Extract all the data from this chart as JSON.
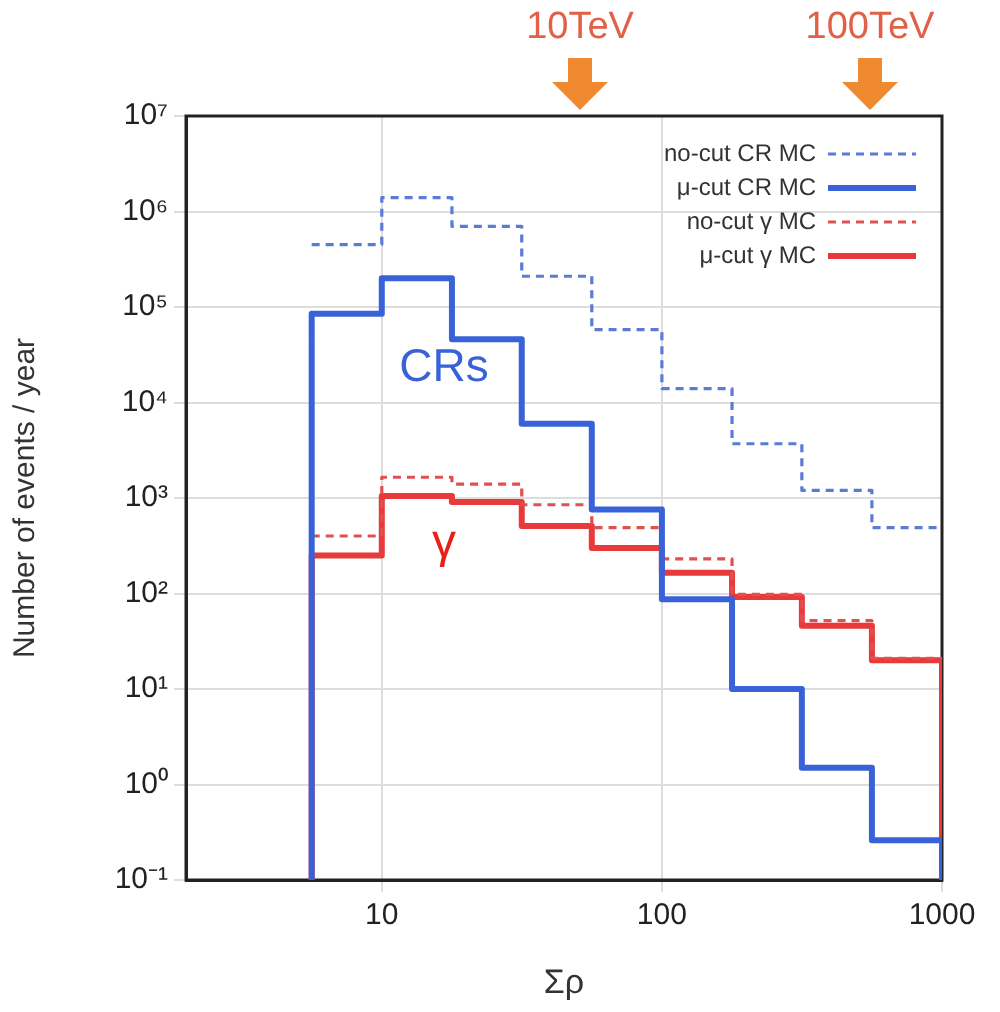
{
  "chart_data": {
    "type": "step",
    "xlabel": "Σρ",
    "ylabel": "Number of events / year",
    "series": [
      {
        "name": "no-cut CR MC",
        "color": "#5b7bd5",
        "line_style": "dashed",
        "x": [
          5.62,
          10,
          17.8,
          31.6,
          56.2,
          100,
          178,
          316,
          562,
          1000
        ],
        "values": [
          450000,
          1400000,
          700000,
          210000,
          58000,
          14000,
          3700,
          1200,
          490,
          490
        ]
      },
      {
        "name": "μ-cut CR MC",
        "color": "#3a62d8",
        "line_style": "solid",
        "x": [
          5.62,
          5.62,
          10,
          17.8,
          31.6,
          56.2,
          100,
          178,
          316,
          562,
          1000,
          1000
        ],
        "values": [
          0.1,
          85000,
          200000,
          46000,
          6000,
          760,
          87,
          10,
          1.5,
          0.26,
          0.26,
          0.1
        ]
      },
      {
        "name": "no-cut γ MC",
        "color": "#e05050",
        "line_style": "dashed",
        "x": [
          5.62,
          10,
          17.8,
          31.6,
          56.2,
          100,
          178,
          316,
          562,
          1000
        ],
        "values": [
          400,
          1650,
          1400,
          850,
          490,
          230,
          98,
          52,
          21,
          21
        ]
      },
      {
        "name": "μ-cut γ MC",
        "color": "#e83a3a",
        "line_style": "solid",
        "x": [
          5.62,
          5.62,
          10,
          17.8,
          31.6,
          56.2,
          100,
          178,
          316,
          562,
          1000,
          1000
        ],
        "values": [
          0.1,
          250,
          1050,
          910,
          510,
          300,
          165,
          92,
          46,
          20,
          20,
          0.1
        ]
      }
    ],
    "log": "xy",
    "xlim": [
      2,
      1000
    ],
    "xticks": [
      10,
      100,
      1000
    ],
    "ylim": [
      0.1,
      10000000
    ],
    "yticks": [
      {
        "value": 0.1,
        "label": "10⁻¹"
      },
      {
        "value": 1,
        "label": "10⁰"
      },
      {
        "value": 10,
        "label": "10¹"
      },
      {
        "value": 100,
        "label": "10²"
      },
      {
        "value": 1000,
        "label": "10³"
      },
      {
        "value": 10000,
        "label": "10⁴"
      },
      {
        "value": 100000,
        "label": "10⁵"
      },
      {
        "value": 1000000,
        "label": "10⁶"
      },
      {
        "value": 10000000,
        "label": "10⁷"
      }
    ],
    "grid": true,
    "legend": "top right",
    "annotations": [
      "10TeV",
      "100TeV",
      "CRs",
      "γ"
    ]
  }
}
